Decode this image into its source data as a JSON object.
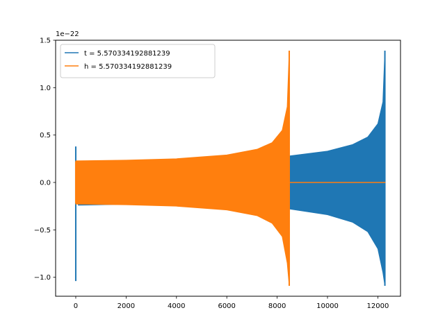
{
  "chart_data": {
    "type": "line",
    "title": "",
    "xlabel": "",
    "ylabel": "",
    "y_offset_label": "1e−22",
    "xlim": [
      -800,
      12900
    ],
    "ylim": [
      -1.2,
      1.5
    ],
    "x_ticks": [
      0,
      2000,
      4000,
      6000,
      8000,
      10000,
      12000
    ],
    "x_tick_labels": [
      "0",
      "2000",
      "4000",
      "6000",
      "8000",
      "10000",
      "12000"
    ],
    "y_ticks": [
      -1.0,
      -0.5,
      0.0,
      0.5,
      1.0,
      1.5
    ],
    "y_tick_labels": [
      "−1.0",
      "−0.5",
      "0.0",
      "0.5",
      "1.0",
      "1.5"
    ],
    "grid": false,
    "legend_position": "top-left",
    "series": [
      {
        "name": "t = 5.570334192881239",
        "color": "#1f77b4",
        "start_spike": {
          "x": 0,
          "max": 0.38,
          "min": -1.04
        },
        "envelope": [
          {
            "x": 100,
            "max": 0.22,
            "min": -0.24
          },
          {
            "x": 2000,
            "max": 0.215,
            "min": -0.23
          },
          {
            "x": 6000,
            "max": 0.24,
            "min": -0.25
          },
          {
            "x": 8500,
            "max": 0.28,
            "min": -0.28
          },
          {
            "x": 10000,
            "max": 0.33,
            "min": -0.34
          },
          {
            "x": 11000,
            "max": 0.4,
            "min": -0.42
          },
          {
            "x": 11600,
            "max": 0.48,
            "min": -0.52
          },
          {
            "x": 12000,
            "max": 0.62,
            "min": -0.7
          },
          {
            "x": 12200,
            "max": 0.85,
            "min": -0.95
          },
          {
            "x": 12280,
            "max": 1.39,
            "min": -1.09
          }
        ],
        "end_x": 12300
      },
      {
        "name": "h = 5.570334192881239",
        "color": "#ff7f0e",
        "start_spike": {
          "x": 0,
          "max": 0.22,
          "min": -0.22
        },
        "envelope": [
          {
            "x": 0,
            "max": 0.228,
            "min": -0.228
          },
          {
            "x": 2000,
            "max": 0.235,
            "min": -0.235
          },
          {
            "x": 4000,
            "max": 0.25,
            "min": -0.25
          },
          {
            "x": 6000,
            "max": 0.29,
            "min": -0.29
          },
          {
            "x": 7200,
            "max": 0.35,
            "min": -0.35
          },
          {
            "x": 7800,
            "max": 0.42,
            "min": -0.43
          },
          {
            "x": 8200,
            "max": 0.55,
            "min": -0.57
          },
          {
            "x": 8400,
            "max": 0.8,
            "min": -0.85
          },
          {
            "x": 8480,
            "max": 1.39,
            "min": -1.09
          }
        ],
        "flat_segment": {
          "x_start": 8500,
          "x_end": 12300,
          "y": 0.0
        }
      }
    ]
  }
}
